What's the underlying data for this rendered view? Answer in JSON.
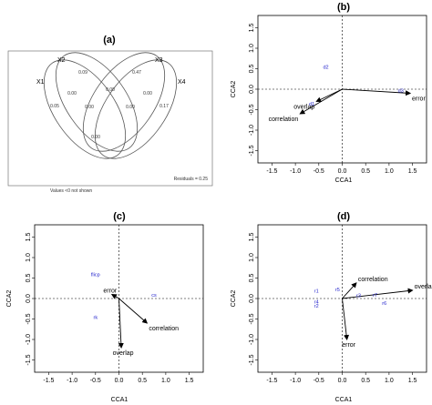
{
  "chart_data": [
    {
      "id": "a",
      "type": "venn",
      "title": "(a)",
      "set_labels": [
        "X1",
        "X2",
        "X3",
        "X4"
      ],
      "region_values": [
        {
          "region": "X1 only",
          "value": "0.05"
        },
        {
          "region": "X2 only",
          "value": "0.09"
        },
        {
          "region": "X3 only",
          "value": "0.47"
        },
        {
          "region": "X4 only",
          "value": "0.17"
        },
        {
          "region": "X1∩X2",
          "value": "0.00"
        },
        {
          "region": "X2∩X3",
          "value": "0.00"
        },
        {
          "region": "X3∩X4",
          "value": "0.00"
        },
        {
          "region": "center-left",
          "value": "0.00"
        },
        {
          "region": "center-right",
          "value": "0.00"
        },
        {
          "region": "bottom-center",
          "value": "0.00"
        }
      ],
      "residuals_label": "Residuals = 0.25",
      "footnote": "Values <0 not shown"
    },
    {
      "id": "b",
      "type": "scatter",
      "title": "(b)",
      "xlabel": "CCA1",
      "ylabel": "CCA2",
      "xlim": [
        -1.8,
        1.8
      ],
      "ylim": [
        -1.8,
        1.8
      ],
      "xticks": [
        "-1.5",
        "-1.0",
        "-0.5",
        "0.0",
        "0.5",
        "1.0",
        "1.5"
      ],
      "yticks": [
        "1.5",
        "1.0",
        "0.5",
        "0.0",
        "-0.5",
        "-1.0",
        "-1.5"
      ],
      "arrows": [
        {
          "label": "error",
          "x": 1.45,
          "y": -0.1
        },
        {
          "label": "overlap",
          "x": -0.55,
          "y": -0.3
        },
        {
          "label": "correlation",
          "x": -0.9,
          "y": -0.6
        }
      ],
      "sites": [
        {
          "label": "d2",
          "x": -0.35,
          "y": 0.5
        },
        {
          "label": "d1",
          "x": -0.65,
          "y": -0.4
        },
        {
          "label": "d3",
          "x": 1.25,
          "y": -0.08
        }
      ]
    },
    {
      "id": "c",
      "type": "scatter",
      "title": "(c)",
      "xlabel": "CCA1",
      "ylabel": "CCA2",
      "xlim": [
        -1.8,
        1.8
      ],
      "ylim": [
        -1.8,
        1.8
      ],
      "xticks": [
        "-1.5",
        "-1.0",
        "-0.5",
        "0.0",
        "0.5",
        "1.0",
        "1.5"
      ],
      "yticks": [
        "1.5",
        "1.0",
        "0.5",
        "0.0",
        "-0.5",
        "-1.0",
        "-1.5"
      ],
      "arrows": [
        {
          "label": "error",
          "x": -0.15,
          "y": 0.1
        },
        {
          "label": "correlation",
          "x": 0.6,
          "y": -0.6
        },
        {
          "label": "overlap",
          "x": 0.05,
          "y": -1.2
        }
      ],
      "sites": [
        {
          "label": "flicp",
          "x": -0.5,
          "y": 0.55
        },
        {
          "label": "cs",
          "x": 0.75,
          "y": 0.05
        },
        {
          "label": "rk",
          "x": -0.5,
          "y": -0.5
        }
      ]
    },
    {
      "id": "d",
      "type": "scatter",
      "title": "(d)",
      "xlabel": "CCA1",
      "ylabel": "CCA2",
      "xlim": [
        -1.8,
        1.8
      ],
      "ylim": [
        -1.8,
        1.8
      ],
      "xticks": [
        "-1.5",
        "-1.0",
        "-0.5",
        "0.0",
        "0.5",
        "1.0",
        "1.5"
      ],
      "yticks": [
        "1.5",
        "1.0",
        "0.5",
        "0.0",
        "-0.5",
        "-1.0",
        "-1.5"
      ],
      "arrows": [
        {
          "label": "correlation",
          "x": 0.3,
          "y": 0.38
        },
        {
          "label": "overlap",
          "x": 1.5,
          "y": 0.2
        },
        {
          "label": "error",
          "x": 0.1,
          "y": -1.0
        }
      ],
      "sites": [
        {
          "label": "r1",
          "x": -0.55,
          "y": 0.15
        },
        {
          "label": "r5",
          "x": -0.1,
          "y": 0.18
        },
        {
          "label": "r4",
          "x": -0.55,
          "y": -0.12
        },
        {
          "label": "r2",
          "x": -0.55,
          "y": -0.22
        },
        {
          "label": "r3",
          "x": 0.35,
          "y": 0.03
        },
        {
          "label": "r7",
          "x": 0.7,
          "y": 0.05
        },
        {
          "label": "r6",
          "x": 0.9,
          "y": -0.15
        }
      ]
    }
  ]
}
